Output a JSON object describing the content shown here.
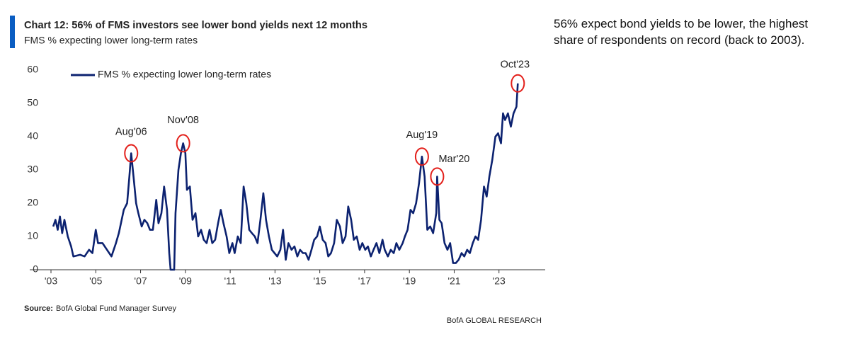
{
  "chart_data": {
    "type": "line",
    "title": "Chart 12: 56% of FMS investors see lower bond yields next 12 months",
    "subtitle": "FMS % expecting lower long-term rates",
    "source_label": "Source:",
    "source": "BofA Global Fund Manager Survey",
    "brand": "BofA GLOBAL RESEARCH",
    "commentary": "56% expect bond yields to be lower, the highest share of respondents on record (back to 2003).",
    "x": [
      2003.1,
      2003.2,
      2003.3,
      2003.4,
      2003.5,
      2003.6,
      2003.75,
      2003.9,
      2004.0,
      2004.3,
      2004.5,
      2004.7,
      2004.85,
      2005.0,
      2005.1,
      2005.3,
      2005.5,
      2005.6,
      2005.7,
      2005.9,
      2006.03,
      2006.25,
      2006.4,
      2006.5,
      2006.58,
      2006.7,
      2006.8,
      2006.9,
      2007.05,
      2007.17,
      2007.3,
      2007.42,
      2007.55,
      2007.7,
      2007.8,
      2007.93,
      2008.05,
      2008.18,
      2008.28,
      2008.34,
      2008.5,
      2008.56,
      2008.69,
      2008.8,
      2008.9,
      2009.0,
      2009.07,
      2009.2,
      2009.32,
      2009.45,
      2009.57,
      2009.7,
      2009.82,
      2009.95,
      2010.08,
      2010.2,
      2010.33,
      2010.46,
      2010.58,
      2010.7,
      2010.84,
      2010.96,
      2011.1,
      2011.2,
      2011.34,
      2011.47,
      2011.6,
      2011.72,
      2011.85,
      2011.97,
      2012.1,
      2012.22,
      2012.35,
      2012.48,
      2012.6,
      2012.73,
      2012.86,
      2012.98,
      2013.1,
      2013.24,
      2013.36,
      2013.48,
      2013.6,
      2013.74,
      2013.87,
      2014.0,
      2014.12,
      2014.25,
      2014.37,
      2014.5,
      2014.63,
      2014.75,
      2014.88,
      2015.0,
      2015.13,
      2015.26,
      2015.38,
      2015.5,
      2015.64,
      2015.76,
      2015.9,
      2016.02,
      2016.15,
      2016.27,
      2016.4,
      2016.52,
      2016.65,
      2016.78,
      2016.9,
      2017.03,
      2017.15,
      2017.28,
      2017.4,
      2017.53,
      2017.66,
      2017.8,
      2017.9,
      2018.04,
      2018.17,
      2018.3,
      2018.42,
      2018.55,
      2018.7,
      2018.8,
      2018.92,
      2019.05,
      2019.17,
      2019.3,
      2019.43,
      2019.56,
      2019.68,
      2019.8,
      2019.93,
      2020.06,
      2020.2,
      2020.24,
      2020.34,
      2020.44,
      2020.57,
      2020.7,
      2020.82,
      2020.95,
      2021.07,
      2021.2,
      2021.33,
      2021.45,
      2021.58,
      2021.7,
      2021.83,
      2021.95,
      2022.07,
      2022.2,
      2022.33,
      2022.45,
      2022.57,
      2022.7,
      2022.84,
      2022.96,
      2023.09,
      2023.18,
      2023.27,
      2023.4,
      2023.53,
      2023.65,
      2023.78,
      2023.84
    ],
    "series": [
      {
        "name": "FMS % expecting lower long-term rates",
        "color": "#0c2270",
        "values": [
          13,
          15,
          12,
          16,
          11,
          15,
          10,
          7,
          4,
          4.5,
          4,
          6,
          5,
          12,
          8,
          8,
          6,
          5,
          4,
          8,
          11,
          18,
          20,
          28,
          35,
          27,
          20,
          17,
          13,
          15,
          14,
          12,
          12,
          21,
          14,
          17,
          25,
          18,
          5,
          0,
          0,
          17,
          30,
          35,
          38,
          35,
          24,
          25,
          15,
          17,
          10,
          12,
          9,
          8,
          12,
          8,
          9,
          14,
          18,
          14,
          10,
          5,
          8,
          5,
          10,
          8,
          25,
          20,
          12,
          11,
          10,
          8,
          15,
          23,
          15,
          10,
          6,
          5,
          4,
          6,
          12,
          3,
          8,
          6,
          7,
          4,
          6,
          5,
          5,
          3,
          6,
          9,
          10,
          13,
          9,
          8,
          4,
          5,
          8,
          15,
          13,
          8,
          10,
          19,
          15,
          9,
          10,
          6,
          8,
          6,
          7,
          4,
          6,
          8,
          5,
          9,
          6,
          4,
          6,
          5,
          8,
          6,
          8,
          10,
          12,
          18,
          17,
          20,
          26,
          34,
          28,
          12,
          13,
          11,
          17,
          28,
          15,
          14,
          8,
          6,
          8,
          2,
          2,
          3,
          5,
          4,
          6,
          5,
          8,
          10,
          9,
          15,
          25,
          22,
          28,
          33,
          40,
          41,
          38,
          47,
          45,
          47,
          43,
          47,
          49,
          56
        ]
      }
    ],
    "xlim": [
      2003,
      2025
    ],
    "xticks": [
      {
        "value": 2003,
        "label": "'03"
      },
      {
        "value": 2005,
        "label": "'05"
      },
      {
        "value": 2007,
        "label": "'07"
      },
      {
        "value": 2009,
        "label": "'09"
      },
      {
        "value": 2011,
        "label": "'11"
      },
      {
        "value": 2013,
        "label": "'13"
      },
      {
        "value": 2015,
        "label": "'15"
      },
      {
        "value": 2017,
        "label": "'17"
      },
      {
        "value": 2019,
        "label": "'19"
      },
      {
        "value": 2021,
        "label": "'21"
      },
      {
        "value": 2023,
        "label": "'23"
      }
    ],
    "ylim": [
      0,
      60
    ],
    "yticks": [
      0,
      10,
      20,
      30,
      40,
      50,
      60
    ],
    "annotations": [
      {
        "text": "Aug'06",
        "x": 2006.58,
        "y": 35
      },
      {
        "text": "Nov'08",
        "x": 2008.9,
        "y": 38
      },
      {
        "text": "Aug'19",
        "x": 2019.56,
        "y": 34
      },
      {
        "text": "Mar'20",
        "x": 2020.24,
        "y": 28
      },
      {
        "text": "Oct'23",
        "x": 2023.84,
        "y": 56
      }
    ],
    "annotation_color": "#e3201b"
  }
}
